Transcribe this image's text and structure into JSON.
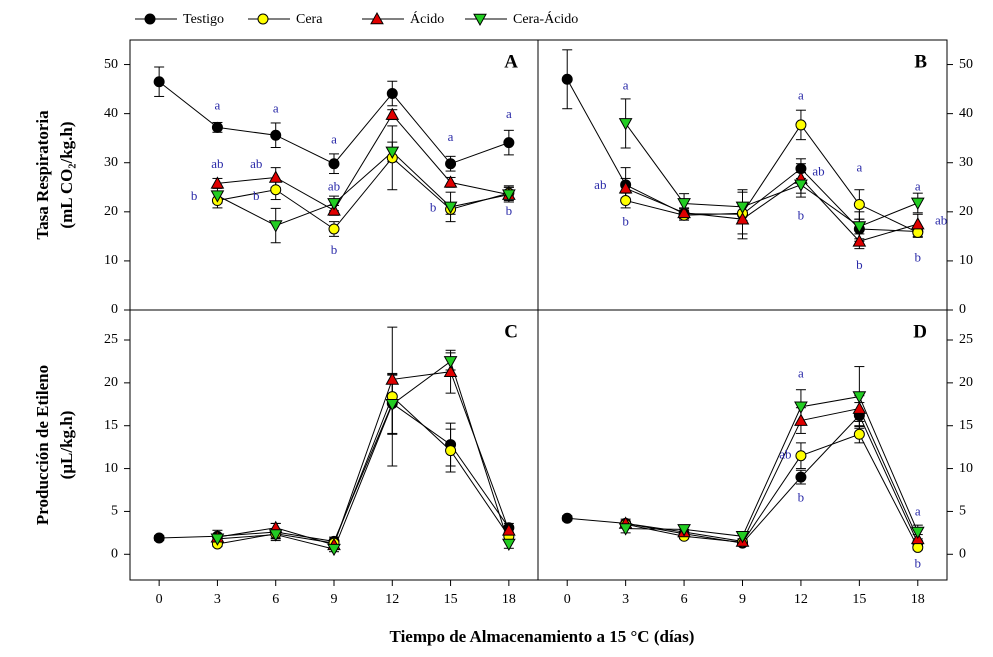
{
  "xlabel": "Tiempo de Almacenamiento a 15 °C (días)",
  "chart_data": [
    {
      "type": "line",
      "title": "A",
      "ylabel": [
        "Tasa Respiratoria",
        "(mL CO₂/kg.h)"
      ],
      "y_side": "left",
      "x": [
        0,
        3,
        6,
        9,
        12,
        15,
        18
      ],
      "xlim": [
        -1.5,
        19.5
      ],
      "ylim": [
        0,
        55
      ],
      "yticks": [
        0,
        10,
        20,
        30,
        40,
        50
      ],
      "series": [
        {
          "name": "Testigo",
          "color": "#000000",
          "marker": "circle",
          "values": [
            46.5,
            37.2,
            35.6,
            29.8,
            44.1,
            29.8,
            34.1
          ],
          "errors": [
            3,
            1,
            2.5,
            2,
            2.5,
            1.5,
            2.5
          ]
        },
        {
          "name": "Cera",
          "color": "#ffff00",
          "marker": "circle",
          "values": [
            null,
            22.3,
            24.5,
            16.5,
            31,
            20.5,
            23.8
          ],
          "errors": [
            null,
            1.5,
            2,
            1.5,
            6.5,
            1,
            1.5
          ]
        },
        {
          "name": "Ácido",
          "color": "#e00000",
          "marker": "triangle-up",
          "values": [
            null,
            25.8,
            27,
            20.3,
            39.8,
            26,
            23.5
          ],
          "errors": [
            null,
            1,
            2,
            1,
            1,
            1,
            1.5
          ]
        },
        {
          "name": "Cera-Ácido",
          "color": "#22cc22",
          "marker": "triangle-down",
          "values": [
            null,
            23.3,
            17.2,
            21.7,
            32.2,
            21,
            23.5
          ],
          "errors": [
            null,
            1.5,
            3.5,
            1.5,
            2,
            3,
            1.5
          ]
        }
      ],
      "annotations": [
        {
          "text": "a",
          "x": 3,
          "y": 41.5
        },
        {
          "text": "ab",
          "x": 3,
          "y": 29.5
        },
        {
          "text": "b",
          "x": 1.8,
          "y": 23
        },
        {
          "text": "a",
          "x": 6,
          "y": 40.8
        },
        {
          "text": "ab",
          "x": 5,
          "y": 29.5
        },
        {
          "text": "b",
          "x": 5,
          "y": 23
        },
        {
          "text": "a",
          "x": 9,
          "y": 34.5
        },
        {
          "text": "ab",
          "x": 9,
          "y": 25
        },
        {
          "text": "b",
          "x": 9,
          "y": 12
        },
        {
          "text": "a",
          "x": 15,
          "y": 35
        },
        {
          "text": "b",
          "x": 14.1,
          "y": 20.7
        },
        {
          "text": "a",
          "x": 18,
          "y": 39.7
        },
        {
          "text": "b",
          "x": 18,
          "y": 20
        }
      ]
    },
    {
      "type": "line",
      "title": "B",
      "y_side": "right",
      "x": [
        0,
        3,
        6,
        9,
        12,
        15,
        18
      ],
      "xlim": [
        -1.5,
        19.5
      ],
      "ylim": [
        0,
        55
      ],
      "yticks": [
        0,
        10,
        20,
        30,
        40,
        50
      ],
      "series": [
        {
          "name": "Testigo",
          "color": "#000000",
          "marker": "circle",
          "values": [
            47,
            25.5,
            19.6,
            19.5,
            28.8,
            16.5,
            16
          ],
          "errors": [
            6,
            3.5,
            1,
            5,
            2,
            2,
            1
          ]
        },
        {
          "name": "Cera",
          "color": "#ffff00",
          "marker": "circle",
          "values": [
            null,
            22.3,
            19.3,
            19.7,
            37.7,
            21.5,
            15.8
          ],
          "errors": [
            null,
            1.5,
            1,
            1.5,
            3,
            3,
            1
          ]
        },
        {
          "name": "Ácido",
          "color": "#e00000",
          "marker": "triangle-up",
          "values": [
            null,
            24.8,
            19.8,
            18.5,
            26.8,
            14,
            17.5
          ],
          "errors": [
            null,
            2,
            1,
            3,
            3,
            1.5,
            2
          ]
        },
        {
          "name": "Cera-Ácido",
          "color": "#22cc22",
          "marker": "triangle-down",
          "values": [
            null,
            38,
            21.7,
            21,
            25.5,
            17,
            21.8
          ],
          "errors": [
            null,
            5,
            2,
            3,
            2.5,
            3,
            2
          ]
        }
      ],
      "annotations": [
        {
          "text": "a",
          "x": 3,
          "y": 45.5
        },
        {
          "text": "ab",
          "x": 1.7,
          "y": 25.3
        },
        {
          "text": "b",
          "x": 3,
          "y": 17.8
        },
        {
          "text": "a",
          "x": 12,
          "y": 43.5
        },
        {
          "text": "ab",
          "x": 12.9,
          "y": 28
        },
        {
          "text": "b",
          "x": 12,
          "y": 19
        },
        {
          "text": "a",
          "x": 15,
          "y": 28.8
        },
        {
          "text": "b",
          "x": 15,
          "y": 9
        },
        {
          "text": "a",
          "x": 18,
          "y": 25
        },
        {
          "text": "ab",
          "x": 19.2,
          "y": 18
        },
        {
          "text": "b",
          "x": 18,
          "y": 10.5
        }
      ]
    },
    {
      "type": "line",
      "title": "C",
      "ylabel": [
        "Producción de Etileno",
        "(µL/kg.h)"
      ],
      "y_side": "left",
      "x": [
        0,
        3,
        6,
        9,
        12,
        15,
        18
      ],
      "xlim": [
        -1.5,
        19.5
      ],
      "xticks": [
        0,
        3,
        6,
        9,
        12,
        15,
        18
      ],
      "ylim": [
        -3,
        28.5
      ],
      "yticks": [
        0,
        5,
        10,
        15,
        20,
        25
      ],
      "series": [
        {
          "name": "Testigo",
          "color": "#000000",
          "marker": "circle",
          "values": [
            1.9,
            2.1,
            2.6,
            1.5,
            17.6,
            12.8,
            3.1
          ],
          "errors": [
            0.3,
            0.7,
            1,
            0.5,
            3.5,
            2.5,
            0.5
          ]
        },
        {
          "name": "Cera",
          "color": "#ffff00",
          "marker": "circle",
          "values": [
            null,
            1.2,
            2.4,
            1.3,
            18.4,
            12.1,
            2.1
          ],
          "errors": [
            null,
            0.3,
            0.5,
            0.3,
            8.1,
            2.5,
            0.5
          ]
        },
        {
          "name": "Ácido",
          "color": "#e00000",
          "marker": "triangle-up",
          "values": [
            null,
            2,
            3.1,
            1.1,
            20.4,
            21.3,
            2.8
          ],
          "errors": [
            null,
            0.3,
            0.5,
            0.3,
            0.5,
            2.5,
            0.5
          ]
        },
        {
          "name": "Cera-Ácido",
          "color": "#22cc22",
          "marker": "triangle-down",
          "values": [
            null,
            1.8,
            2.3,
            0.6,
            17.5,
            22.5,
            1.2
          ],
          "errors": [
            null,
            0.3,
            0.5,
            0.3,
            3.5,
            1,
            0.5
          ]
        }
      ]
    },
    {
      "type": "line",
      "title": "D",
      "y_side": "right",
      "x": [
        0,
        3,
        6,
        9,
        12,
        15,
        18
      ],
      "xlim": [
        -1.5,
        19.5
      ],
      "xticks": [
        0,
        3,
        6,
        9,
        12,
        15,
        18
      ],
      "ylim": [
        -3,
        28.5
      ],
      "yticks": [
        0,
        5,
        10,
        15,
        20,
        25
      ],
      "series": [
        {
          "name": "Testigo",
          "color": "#000000",
          "marker": "circle",
          "values": [
            4.2,
            3.6,
            2.4,
            1.3,
            9,
            16.2,
            1.3
          ],
          "errors": [
            0.3,
            0.5,
            0.3,
            0.3,
            0.8,
            1.5,
            0.3
          ]
        },
        {
          "name": "Cera",
          "color": "#ffff00",
          "marker": "circle",
          "values": [
            null,
            3.5,
            2.1,
            1.4,
            11.5,
            14,
            0.8
          ],
          "errors": [
            null,
            0.3,
            0.3,
            0.3,
            1.5,
            1,
            0.3
          ]
        },
        {
          "name": "Ácido",
          "color": "#e00000",
          "marker": "triangle-up",
          "values": [
            null,
            3.6,
            2.6,
            1.5,
            15.6,
            17,
            1.8
          ],
          "errors": [
            null,
            0.3,
            0.3,
            0.3,
            1.5,
            1.5,
            0.5
          ]
        },
        {
          "name": "Cera-Ácido",
          "color": "#22cc22",
          "marker": "triangle-down",
          "values": [
            null,
            3,
            2.9,
            2.1,
            17.2,
            18.4,
            2.6
          ],
          "errors": [
            null,
            0.5,
            0.5,
            0.3,
            2,
            3.5,
            0.8
          ]
        }
      ],
      "annotations": [
        {
          "text": "a",
          "x": 12,
          "y": 21
        },
        {
          "text": "ab",
          "x": 11.2,
          "y": 11.5
        },
        {
          "text": "b",
          "x": 12,
          "y": 6.5
        },
        {
          "text": "a",
          "x": 18,
          "y": 4.9
        },
        {
          "text": "b",
          "x": 18,
          "y": -1.2
        }
      ]
    }
  ]
}
